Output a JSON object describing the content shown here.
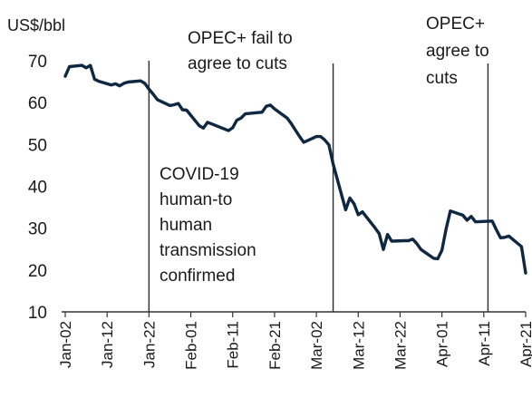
{
  "chart_data": {
    "type": "line",
    "title": "",
    "ylabel": "US$/bbl",
    "xlabel": "",
    "ylim": [
      10,
      70
    ],
    "yticks": [
      10,
      20,
      30,
      40,
      50,
      60,
      70
    ],
    "xticks": [
      "Jan-02",
      "Jan-12",
      "Jan-22",
      "Feb-01",
      "Feb-11",
      "Feb-21",
      "Mar-02",
      "Mar-12",
      "Mar-22",
      "Apr-01",
      "Apr-11",
      "Apr-21"
    ],
    "x_tick_dates": [
      "2020-01-02",
      "2020-01-12",
      "2020-01-22",
      "2020-02-01",
      "2020-02-11",
      "2020-02-21",
      "2020-03-02",
      "2020-03-12",
      "2020-03-22",
      "2020-04-01",
      "2020-04-11",
      "2020-04-21"
    ],
    "grid": false,
    "series": [
      {
        "color": "#0f2740",
        "x": [
          "2020-01-02",
          "2020-01-03",
          "2020-01-06",
          "2020-01-07",
          "2020-01-08",
          "2020-01-09",
          "2020-01-10",
          "2020-01-13",
          "2020-01-14",
          "2020-01-15",
          "2020-01-16",
          "2020-01-17",
          "2020-01-20",
          "2020-01-21",
          "2020-01-22",
          "2020-01-23",
          "2020-01-24",
          "2020-01-27",
          "2020-01-28",
          "2020-01-29",
          "2020-01-30",
          "2020-01-31",
          "2020-02-03",
          "2020-02-04",
          "2020-02-05",
          "2020-02-06",
          "2020-02-07",
          "2020-02-10",
          "2020-02-11",
          "2020-02-12",
          "2020-02-13",
          "2020-02-14",
          "2020-02-17",
          "2020-02-18",
          "2020-02-19",
          "2020-02-20",
          "2020-02-21",
          "2020-02-24",
          "2020-02-25",
          "2020-02-26",
          "2020-02-27",
          "2020-02-28",
          "2020-03-02",
          "2020-03-03",
          "2020-03-04",
          "2020-03-05",
          "2020-03-06",
          "2020-03-09",
          "2020-03-10",
          "2020-03-11",
          "2020-03-12",
          "2020-03-13",
          "2020-03-16",
          "2020-03-17",
          "2020-03-18",
          "2020-03-19",
          "2020-03-20",
          "2020-03-23",
          "2020-03-24",
          "2020-03-25",
          "2020-03-26",
          "2020-03-27",
          "2020-03-30",
          "2020-03-31",
          "2020-04-01",
          "2020-04-02",
          "2020-04-03",
          "2020-04-06",
          "2020-04-07",
          "2020-04-08",
          "2020-04-09",
          "2020-04-13",
          "2020-04-14",
          "2020-04-15",
          "2020-04-16",
          "2020-04-17",
          "2020-04-20",
          "2020-04-21"
        ],
        "y": [
          66.3,
          68.6,
          68.9,
          68.3,
          68.9,
          65.6,
          65.1,
          64.2,
          64.5,
          64.0,
          64.6,
          64.9,
          65.2,
          64.6,
          63.2,
          62.0,
          60.7,
          59.3,
          59.5,
          59.8,
          58.3,
          58.2,
          54.5,
          53.9,
          55.3,
          54.9,
          54.5,
          53.3,
          54.0,
          55.8,
          56.3,
          57.3,
          57.6,
          57.7,
          59.1,
          59.4,
          58.5,
          56.3,
          55.0,
          53.4,
          51.9,
          50.5,
          51.9,
          51.9,
          51.1,
          49.9,
          45.3,
          34.4,
          37.2,
          35.8,
          33.2,
          33.9,
          30.1,
          28.7,
          24.9,
          28.5,
          26.9,
          27.0,
          27.0,
          27.4,
          26.3,
          24.9,
          22.8,
          22.7,
          24.7,
          29.9,
          34.1,
          33.1,
          31.9,
          32.8,
          31.5,
          31.7,
          29.6,
          27.7,
          27.8,
          28.1,
          25.6,
          19.3
        ]
      }
    ],
    "event_lines": [
      {
        "date": "2020-01-22",
        "label": [
          "COVID-19",
          "human-to",
          "human",
          "transmission",
          "confirmed"
        ]
      },
      {
        "date": "2020-03-06",
        "label": [
          "OPEC+ fail to",
          "agree to cuts"
        ]
      },
      {
        "date": "2020-04-12",
        "label": [
          "OPEC+",
          "agree to",
          "cuts"
        ]
      }
    ]
  }
}
